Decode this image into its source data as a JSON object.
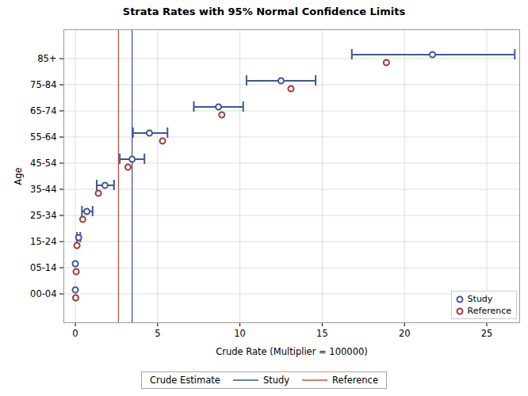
{
  "chart_data": {
    "type": "scatter",
    "orientation": "horizontal",
    "title": "Strata Rates with 95% Normal Confidence Limits",
    "x_label": "Crude Rate (Multiplier = 100000)",
    "y_label": "Age",
    "categories": [
      "85+",
      "75-84",
      "65-74",
      "55-64",
      "45-54",
      "35-44",
      "25-34",
      "15-24",
      "05-14",
      "00-04"
    ],
    "series": [
      {
        "name": "Study",
        "color": "#3e5895",
        "marker": "circle",
        "values": [
          21.7,
          12.5,
          8.7,
          4.5,
          3.45,
          1.8,
          0.7,
          0.2,
          0,
          0
        ],
        "lower": [
          16.8,
          10.4,
          7.2,
          3.5,
          2.7,
          1.3,
          0.4,
          0.1,
          null,
          null
        ],
        "upper": [
          26.7,
          14.6,
          10.2,
          5.6,
          4.2,
          2.35,
          1.05,
          0.3,
          null,
          null
        ]
      },
      {
        "name": "Reference",
        "color": "#a33b2f",
        "marker": "circle",
        "values": [
          18.9,
          13.1,
          8.9,
          5.3,
          3.2,
          1.4,
          0.45,
          0.1,
          0.05,
          0.02
        ]
      }
    ],
    "reference_lines": {
      "title": "Crude Estimate",
      "lines": [
        {
          "name": "Study",
          "value": 3.45,
          "color": "#3e5895"
        },
        {
          "name": "Reference",
          "value": 2.62,
          "color": "#c0504d"
        }
      ]
    },
    "xlim": [
      -0.7,
      27
    ],
    "xticks": [
      0,
      5,
      10,
      15,
      20,
      25
    ],
    "grid": true,
    "legend": "bottom-right"
  }
}
